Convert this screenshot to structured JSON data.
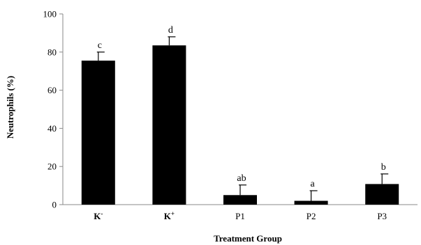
{
  "chart_data": {
    "type": "bar",
    "categories": [
      "K",
      "K",
      "P1",
      "P2",
      "P3"
    ],
    "category_superscripts": [
      "-",
      "+",
      "",
      "",
      ""
    ],
    "values": [
      75.5,
      83.5,
      5.0,
      2.0,
      10.8
    ],
    "errors": [
      4.5,
      4.5,
      5.3,
      5.3,
      5.3
    ],
    "significance_labels": [
      "c",
      "d",
      "ab",
      "a",
      "b"
    ],
    "xlabel": "Treatment Group",
    "ylabel": "Neutrophils (%)",
    "ylim": [
      0,
      100
    ],
    "yticks": [
      "0",
      "20",
      "40",
      "60",
      "80",
      "100"
    ],
    "bar_color": "#000000",
    "grid": false,
    "legend": "none"
  }
}
